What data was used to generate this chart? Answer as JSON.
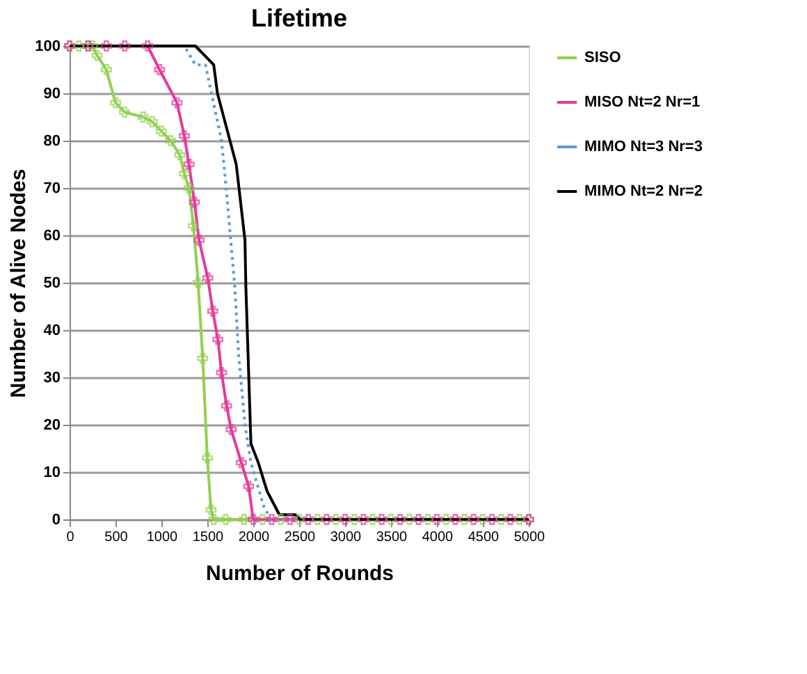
{
  "chart_data": {
    "type": "line",
    "title": "Lifetime",
    "xlabel": "Number of Rounds",
    "ylabel": "Number of Alive Nodes",
    "xlim": [
      0,
      5000
    ],
    "xticks": [
      0,
      500,
      1000,
      1500,
      2000,
      2500,
      3000,
      3500,
      4000,
      4500,
      5000
    ],
    "ylim": [
      0,
      100
    ],
    "yticks": [
      0,
      10,
      20,
      30,
      40,
      50,
      60,
      70,
      80,
      90,
      100
    ],
    "grid": "y",
    "legend": "top right",
    "series": [
      {
        "name": "SISO",
        "color": "#92d050",
        "marker": "cross",
        "line_style": "solid",
        "x": [
          0,
          100,
          200,
          250,
          300,
          400,
          500,
          600,
          800,
          900,
          1000,
          1100,
          1200,
          1250,
          1300,
          1350,
          1400,
          1450,
          1500,
          1540,
          1570,
          1700,
          1900,
          2100,
          2300,
          2500,
          2700,
          2900,
          3100,
          3300,
          3500,
          3700,
          3900,
          4100,
          4300,
          4500,
          4700,
          4900,
          5000
        ],
        "values": [
          100,
          100,
          100,
          100,
          98,
          95,
          88,
          86,
          85,
          84,
          82,
          80,
          77,
          73,
          70,
          62,
          50,
          34,
          13,
          2,
          0,
          0,
          0,
          0,
          0,
          0,
          0,
          0,
          0,
          0,
          0,
          0,
          0,
          0,
          0,
          0,
          0,
          0,
          0
        ]
      },
      {
        "name": "MISO Nt=2 Nr=1",
        "color": "#e6399b",
        "marker": "cross",
        "line_style": "solid",
        "x": [
          0,
          200,
          400,
          600,
          850,
          980,
          1170,
          1250,
          1300,
          1360,
          1410,
          1505,
          1560,
          1615,
          1655,
          1710,
          1760,
          1870,
          1950,
          2000,
          2200,
          2400,
          2600,
          2800,
          3000,
          3200,
          3400,
          3600,
          3800,
          4000,
          4200,
          4400,
          4600,
          4800,
          5000
        ],
        "values": [
          100,
          100,
          100,
          100,
          100,
          95,
          88,
          81,
          75,
          67,
          59,
          51,
          44,
          38,
          31,
          24,
          19,
          12,
          7,
          0,
          0,
          0,
          0,
          0,
          0,
          0,
          0,
          0,
          0,
          0,
          0,
          0,
          0,
          0,
          0
        ]
      },
      {
        "name": "MIMO Nt=3 Nr=3",
        "color": "#5b9bd5",
        "marker": "none",
        "line_style": "dotted",
        "x": [
          0,
          1250,
          1370,
          1480,
          1545,
          1655,
          1705,
          1750,
          1800,
          1840,
          1910,
          1975,
          2110,
          2190,
          5000
        ],
        "values": [
          100,
          100,
          96,
          96,
          90,
          80,
          70,
          60,
          49,
          35,
          20,
          12,
          3,
          0,
          0
        ]
      },
      {
        "name": "MIMO Nt=2 Nr=2",
        "color": "#000000",
        "marker": "none",
        "line_style": "solid",
        "x": [
          0,
          1370,
          1570,
          1610,
          1815,
          1910,
          1920,
          1975,
          2055,
          2150,
          2285,
          2460,
          2510,
          5000
        ],
        "values": [
          100,
          100,
          96,
          90,
          75,
          59,
          49,
          16,
          12,
          6,
          1,
          1,
          0,
          0
        ]
      }
    ]
  }
}
